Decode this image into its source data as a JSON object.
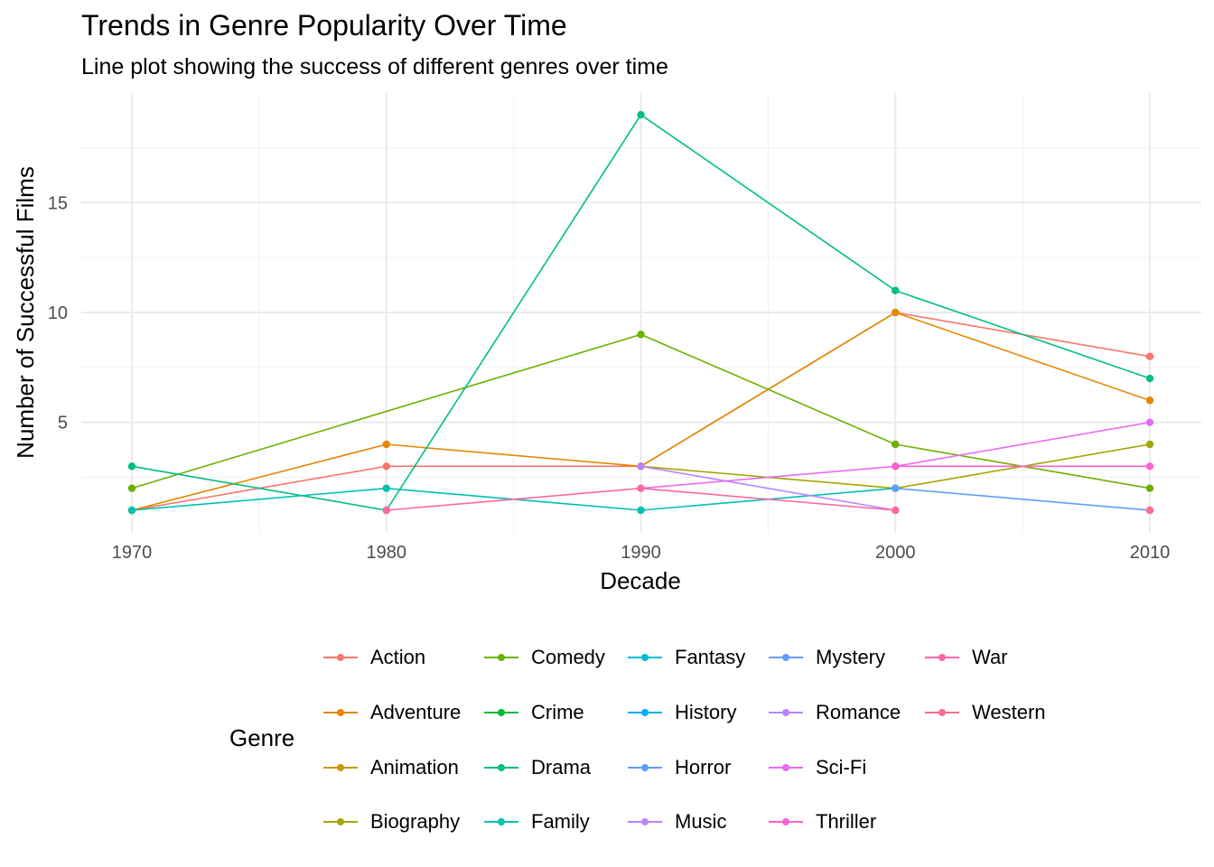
{
  "chart_data": {
    "type": "line",
    "title": "Trends in Genre Popularity Over Time",
    "subtitle": "Line plot showing the success of different genres over time",
    "xlabel": "Decade",
    "ylabel": "Number of Successful Films",
    "x": [
      1970,
      1980,
      1990,
      2000,
      2010
    ],
    "xlim": [
      1970,
      2010
    ],
    "ylim": [
      1,
      19
    ],
    "x_ticks": [
      "1970",
      "1980",
      "1990",
      "2000",
      "2010"
    ],
    "y_ticks": [
      "5",
      "10",
      "15"
    ],
    "grid": true,
    "legend": {
      "title": "Genre",
      "position": "bottom"
    },
    "series": [
      {
        "name": "Action",
        "color": "#F8766D",
        "points": [
          [
            1970,
            1
          ],
          [
            1980,
            3
          ],
          [
            1990,
            3
          ],
          [
            2000,
            10
          ],
          [
            2010,
            8
          ]
        ]
      },
      {
        "name": "Adventure",
        "color": "#E58700",
        "points": [
          [
            1970,
            1
          ],
          [
            1980,
            4
          ],
          [
            1990,
            3
          ],
          [
            2000,
            10
          ],
          [
            2010,
            6
          ]
        ]
      },
      {
        "name": "Animation",
        "color": "#C99800",
        "points": []
      },
      {
        "name": "Biography",
        "color": "#A3A500",
        "points": [
          [
            1990,
            3
          ],
          [
            2000,
            2
          ],
          [
            2010,
            4
          ]
        ]
      },
      {
        "name": "Comedy",
        "color": "#6BB100",
        "points": [
          [
            1970,
            2
          ],
          [
            1990,
            9
          ],
          [
            2000,
            4
          ],
          [
            2010,
            2
          ]
        ]
      },
      {
        "name": "Crime",
        "color": "#00BA38",
        "points": []
      },
      {
        "name": "Drama",
        "color": "#00BF7D",
        "points": [
          [
            1970,
            3
          ],
          [
            1980,
            1
          ],
          [
            1990,
            19
          ],
          [
            2000,
            11
          ],
          [
            2010,
            7
          ]
        ]
      },
      {
        "name": "Family",
        "color": "#00C0AF",
        "points": [
          [
            1970,
            1
          ],
          [
            1980,
            2
          ],
          [
            1990,
            1
          ],
          [
            2000,
            2
          ]
        ]
      },
      {
        "name": "Fantasy",
        "color": "#00BCD8",
        "points": []
      },
      {
        "name": "History",
        "color": "#00B0F6",
        "points": []
      },
      {
        "name": "Horror",
        "color": "#619CFF",
        "points": []
      },
      {
        "name": "Music",
        "color": "#B983FF",
        "points": []
      },
      {
        "name": "Mystery",
        "color": "#619CFF",
        "points": [
          [
            2000,
            2
          ],
          [
            2010,
            1
          ]
        ]
      },
      {
        "name": "Romance",
        "color": "#B983FF",
        "points": [
          [
            1990,
            3
          ],
          [
            2000,
            1
          ]
        ]
      },
      {
        "name": "Sci-Fi",
        "color": "#E76BF3",
        "points": [
          [
            1990,
            2
          ],
          [
            2000,
            3
          ],
          [
            2010,
            5
          ]
        ]
      },
      {
        "name": "Thriller",
        "color": "#FD61D1",
        "points": [
          [
            2000,
            3
          ],
          [
            2010,
            3
          ]
        ]
      },
      {
        "name": "War",
        "color": "#FF67A4",
        "points": [
          [
            1980,
            1
          ],
          [
            1990,
            2
          ],
          [
            2000,
            1
          ]
        ]
      },
      {
        "name": "Western",
        "color": "#FF6C91",
        "points": [
          [
            2010,
            1
          ]
        ]
      }
    ]
  },
  "legend_items": [
    {
      "label": "Action",
      "color": "#F8766D"
    },
    {
      "label": "Adventure",
      "color": "#E58700"
    },
    {
      "label": "Animation",
      "color": "#C99800"
    },
    {
      "label": "Biography",
      "color": "#A3A500"
    },
    {
      "label": "Comedy",
      "color": "#6BB100"
    },
    {
      "label": "Crime",
      "color": "#00BA38"
    },
    {
      "label": "Drama",
      "color": "#00BF7D"
    },
    {
      "label": "Family",
      "color": "#00C0AF"
    },
    {
      "label": "Fantasy",
      "color": "#00BCD8"
    },
    {
      "label": "History",
      "color": "#00B0F6"
    },
    {
      "label": "Horror",
      "color": "#619CFF"
    },
    {
      "label": "Music",
      "color": "#B983FF"
    },
    {
      "label": "Mystery",
      "color": "#619CFF"
    },
    {
      "label": "Romance",
      "color": "#B983FF"
    },
    {
      "label": "Sci-Fi",
      "color": "#E76BF3"
    },
    {
      "label": "Thriller",
      "color": "#FD61D1"
    },
    {
      "label": "War",
      "color": "#FF67A4"
    },
    {
      "label": "Western",
      "color": "#FF6C91"
    }
  ]
}
